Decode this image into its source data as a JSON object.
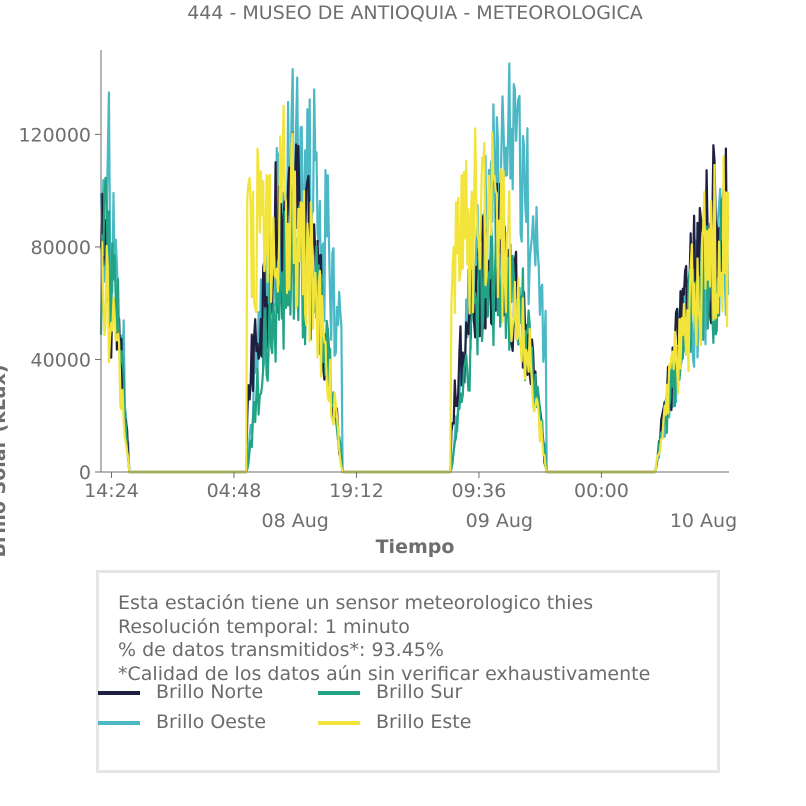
{
  "title": "444 - MUSEO DE ANTIOQUIA - METEOROLOGICA",
  "info": {
    "line1": "Esta estación tiene un sensor meteorologico thies",
    "line2": "Resolución temporal: 1 minuto",
    "line3": "% de datos transmitidos*: 93.45%",
    "line4": "*Calidad de los datos aún sin verificar exhaustivamente"
  },
  "colors": {
    "Brillo Norte": "#1f1f3f",
    "Brillo Sur": "#22a384",
    "Brillo Oeste": "#4bb8c6",
    "Brillo Este": "#f2e43a",
    "axis": "#6e6e6e"
  },
  "chart_data": {
    "type": "line",
    "xlabel": "Tiempo",
    "ylabel": "Brillo Solar (kLux)",
    "x_range": [
      "2018-08-07 13:10",
      "2018-08-10 15:00"
    ],
    "ylim": [
      0,
      150000
    ],
    "y_ticks": [
      0,
      40000,
      80000,
      120000
    ],
    "x_ticks": [
      {
        "t": "2018-08-07 14:24",
        "label": "14:24"
      },
      {
        "t": "2018-08-08 04:48",
        "label": "04:48"
      },
      {
        "t": "2018-08-08 19:12",
        "label": "19:12"
      },
      {
        "t": "2018-08-09 09:36",
        "label": "09:36"
      },
      {
        "t": "2018-08-10 00:00",
        "label": "00:00"
      }
    ],
    "date_labels": [
      {
        "t": "2018-08-08 12:00",
        "label": "08 Aug"
      },
      {
        "t": "2018-08-09 12:00",
        "label": "09 Aug"
      },
      {
        "t": "2018-08-10 12:00",
        "label": "10 Aug"
      }
    ],
    "grid": false,
    "legend_position": "bottom",
    "series": [
      {
        "name": "Brillo Norte",
        "peaks": [
          {
            "start": "2018-08-07 13:10",
            "end": "2018-08-07 16:30",
            "max": 100000,
            "center": "2018-08-07 13:10"
          },
          {
            "start": "2018-08-08 06:20",
            "end": "2018-08-08 17:30",
            "max": 122000,
            "center": "2018-08-08 11:30"
          },
          {
            "start": "2018-08-09 06:20",
            "end": "2018-08-09 17:30",
            "max": 105000,
            "center": "2018-08-09 11:30"
          },
          {
            "start": "2018-08-10 06:20",
            "end": "2018-08-10 15:00",
            "max": 123000,
            "center": "2018-08-10 15:00"
          }
        ]
      },
      {
        "name": "Brillo Sur",
        "peaks": [
          {
            "start": "2018-08-07 13:10",
            "end": "2018-08-07 16:30",
            "max": 108000,
            "center": "2018-08-07 13:10"
          },
          {
            "start": "2018-08-08 06:20",
            "end": "2018-08-08 17:30",
            "max": 100000,
            "center": "2018-08-08 12:00"
          },
          {
            "start": "2018-08-09 06:20",
            "end": "2018-08-09 17:30",
            "max": 97000,
            "center": "2018-08-09 12:00"
          },
          {
            "start": "2018-08-10 06:20",
            "end": "2018-08-10 15:00",
            "max": 105000,
            "center": "2018-08-10 15:00"
          }
        ]
      },
      {
        "name": "Brillo Oeste",
        "peaks": [
          {
            "start": "2018-08-07 13:10",
            "end": "2018-08-07 16:30",
            "max": 150000,
            "center": "2018-08-07 13:10"
          },
          {
            "start": "2018-08-08 06:20",
            "end": "2018-08-08 17:30",
            "max": 150000,
            "center": "2018-08-08 12:30"
          },
          {
            "start": "2018-08-09 06:20",
            "end": "2018-08-09 17:30",
            "max": 146000,
            "center": "2018-08-09 12:45"
          },
          {
            "start": "2018-08-10 06:20",
            "end": "2018-08-10 15:00",
            "max": 106000,
            "center": "2018-08-10 15:00"
          }
        ]
      },
      {
        "name": "Brillo Este",
        "peaks": [
          {
            "start": "2018-08-07 13:10",
            "end": "2018-08-07 16:30",
            "max": 90000,
            "center": "2018-08-07 13:10"
          },
          {
            "start": "2018-08-08 06:20",
            "end": "2018-08-08 17:30",
            "max": 132000,
            "center": "2018-08-08 10:00"
          },
          {
            "start": "2018-08-09 06:20",
            "end": "2018-08-09 17:30",
            "max": 124000,
            "center": "2018-08-09 10:00"
          },
          {
            "start": "2018-08-10 06:20",
            "end": "2018-08-10 15:00",
            "max": 114000,
            "center": "2018-08-10 15:00"
          }
        ]
      }
    ]
  },
  "legend": [
    "Brillo Norte",
    "Brillo Sur",
    "Brillo Oeste",
    "Brillo Este"
  ]
}
